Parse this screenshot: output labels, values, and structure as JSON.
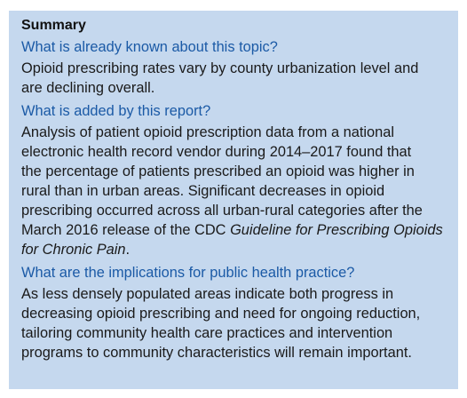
{
  "summary": {
    "heading": "Summary",
    "sections": [
      {
        "question": "What is already known about this topic?",
        "lines": [
          "Opioid prescribing rates vary by county urbanization level and",
          "are declining overall."
        ]
      },
      {
        "question": "What is added by this report?",
        "lines": [
          "Analysis of patient opioid prescription data from a national",
          "electronic health record vendor during 2014–2017 found that",
          "the percentage of patients prescribed an opioid was higher in",
          "rural than in urban areas. Significant decreases in opioid",
          "prescribing occurred across all urban-rural categories after the"
        ],
        "line6_prefix": "March 2016 release of the CDC ",
        "line6_italic": "Guideline for Prescribing Opioids",
        "line7_italic": "for Chronic Pain",
        "line7_suffix": "."
      },
      {
        "question": "What are the implications for public health practice?",
        "lines": [
          "As less densely populated areas indicate both progress in",
          "decreasing opioid prescribing and need for ongoing reduction,",
          "tailoring community health care practices and intervention",
          "programs to community characteristics will remain important."
        ]
      }
    ],
    "colors": {
      "box_background": "#c5d8ee",
      "question_text": "#1b5aa6",
      "body_text": "#1a1a1a"
    }
  }
}
